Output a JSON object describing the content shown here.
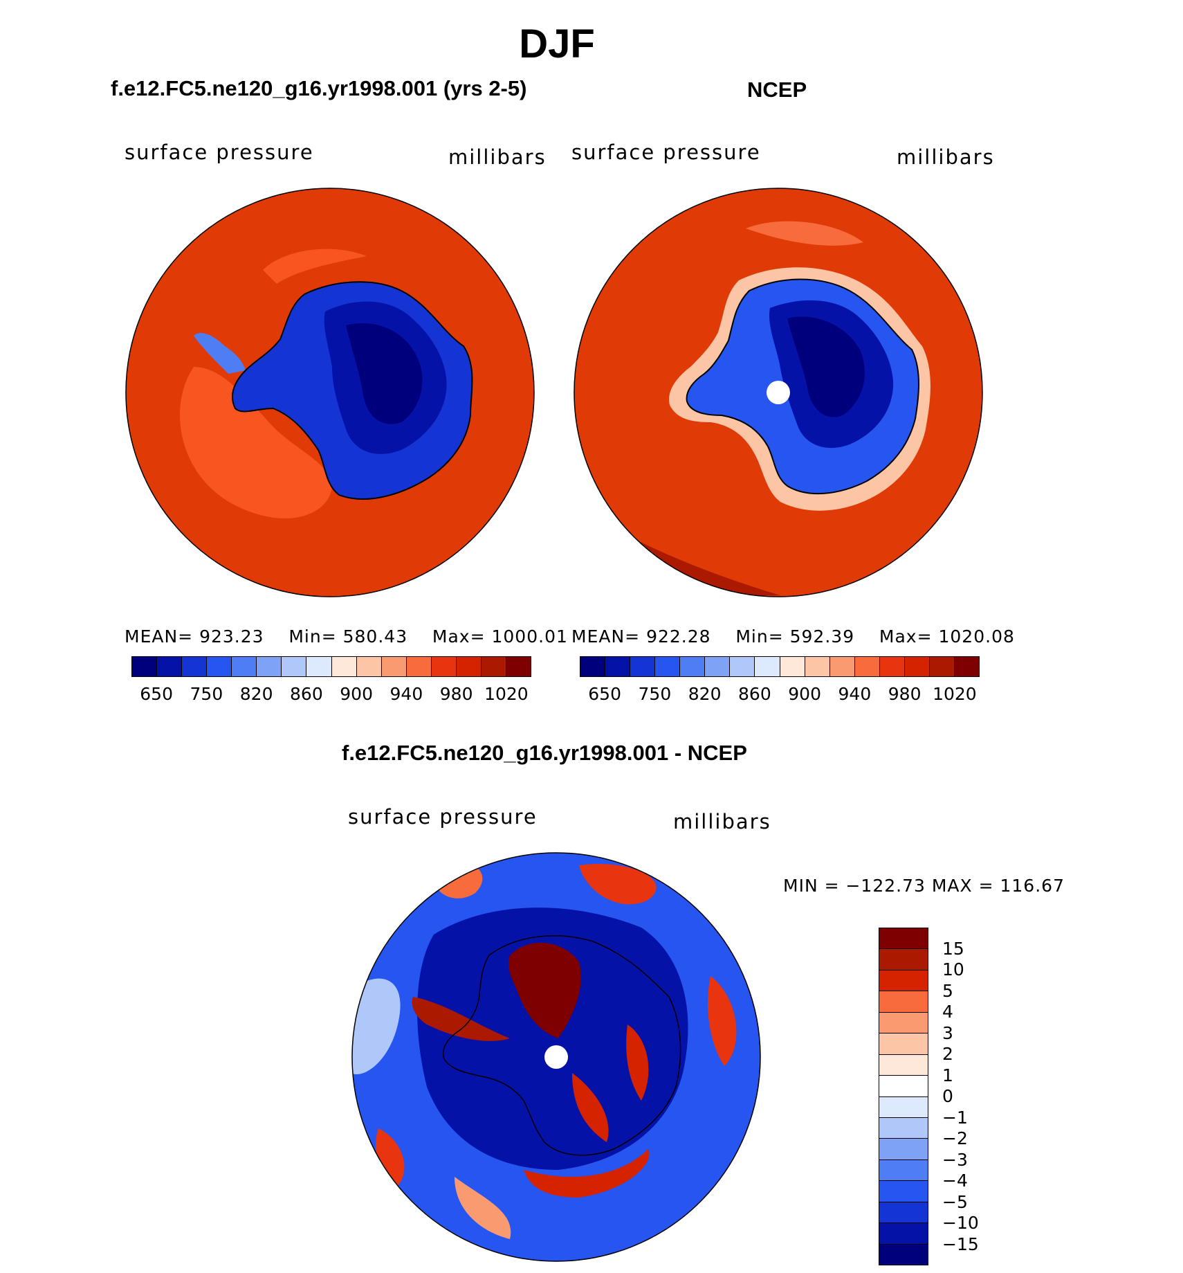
{
  "figure": {
    "title": "DJF",
    "panel_left": {
      "title": "f.e12.FC5.ne120_g16.yr1998.001 (yrs 2-5)",
      "variable": "surface pressure",
      "units": "millibars",
      "mean_label": "MEAN=",
      "mean_value": "923.23",
      "min_label": "Min=",
      "min_value": "580.43",
      "max_label": "Max=",
      "max_value": "1000.01"
    },
    "panel_right": {
      "title": "NCEP",
      "variable": "surface pressure",
      "units": "millibars",
      "mean_label": "MEAN=",
      "mean_value": "922.28",
      "min_label": "Min=",
      "min_value": "592.39",
      "max_label": "Max=",
      "max_value": "1020.08"
    },
    "panel_diff": {
      "title": "f.e12.FC5.ne120_g16.yr1998.001 - NCEP",
      "variable": "surface pressure",
      "units": "millibars",
      "minmax_text": "MIN = −122.73 MAX = 116.67"
    }
  },
  "chart_data": [
    {
      "type": "heatmap",
      "title": "f.e12.FC5.ne120_g16.yr1998.001 (yrs 2-5)",
      "subtitle": "surface pressure (millibars), DJF, south polar stereographic",
      "stats": {
        "mean": 923.23,
        "min": 580.43,
        "max": 1000.01
      },
      "colorbar_ticks": [
        "650",
        "750",
        "820",
        "860",
        "900",
        "940",
        "980",
        "1020"
      ],
      "colorbar_colors": [
        "#00007d",
        "#0412a8",
        "#1434d4",
        "#2655f0",
        "#4f7df4",
        "#7ea2f6",
        "#afc8f9",
        "#dde9fc",
        "#fde8d9",
        "#fcc5a6",
        "#fa9a70",
        "#f76b3c",
        "#e93410",
        "#d52300",
        "#aa1900",
        "#7e0000"
      ]
    },
    {
      "type": "heatmap",
      "title": "NCEP",
      "subtitle": "surface pressure (millibars), DJF, south polar stereographic",
      "stats": {
        "mean": 922.28,
        "min": 592.39,
        "max": 1020.08
      },
      "colorbar_ticks": [
        "650",
        "750",
        "820",
        "860",
        "900",
        "940",
        "980",
        "1020"
      ],
      "colorbar_colors": [
        "#00007d",
        "#0412a8",
        "#1434d4",
        "#2655f0",
        "#4f7df4",
        "#7ea2f6",
        "#afc8f9",
        "#dde9fc",
        "#fde8d9",
        "#fcc5a6",
        "#fa9a70",
        "#f76b3c",
        "#e93410",
        "#d52300",
        "#aa1900",
        "#7e0000"
      ]
    },
    {
      "type": "heatmap",
      "title": "f.e12.FC5.ne120_g16.yr1998.001 - NCEP",
      "subtitle": "surface pressure difference (millibars), DJF",
      "stats": {
        "min": -122.73,
        "max": 116.67
      },
      "colorbar_ticks": [
        "15",
        "10",
        "5",
        "4",
        "3",
        "2",
        "1",
        "0",
        "−1",
        "−2",
        "−3",
        "−4",
        "−5",
        "−10",
        "−15"
      ],
      "colorbar_colors": [
        "#7e0000",
        "#aa1900",
        "#d52300",
        "#f76b3c",
        "#fa9a70",
        "#fcc5a6",
        "#fde8d9",
        "#ffffff",
        "#dde9fc",
        "#afc8f9",
        "#7ea2f6",
        "#4f7df4",
        "#2655f0",
        "#1434d4",
        "#0412a8",
        "#00007d"
      ]
    }
  ]
}
